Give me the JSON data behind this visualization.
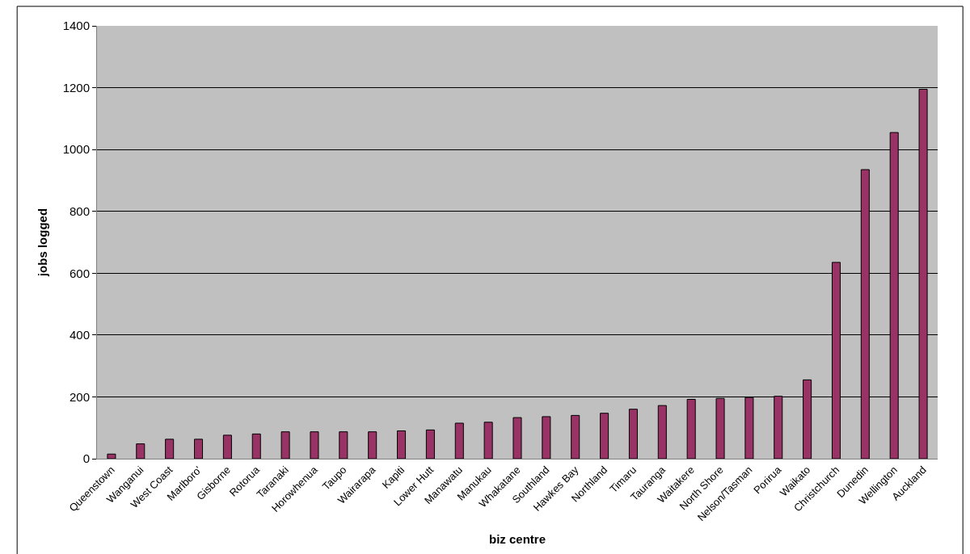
{
  "chart_data": {
    "type": "bar",
    "xlabel": "biz centre",
    "ylabel": "jobs logged",
    "categories": [
      "Queenstown",
      "Wanganui",
      "West Coast",
      "Marlboro'",
      "Gisborne",
      "Rotorua",
      "Taranaki",
      "Horowhenua",
      "Taupo",
      "Wairarapa",
      "Kapiti",
      "Lower Hutt",
      "Manawatu",
      "Manukau",
      "Whakatane",
      "Southland",
      "Hawkes Bay",
      "Northland",
      "Timaru",
      "Tauranga",
      "Waitakere",
      "North Shore",
      "Nelson/Tasman",
      "Porirua",
      "Waikato",
      "Christchurch",
      "Dunedin",
      "Wellington",
      "Auckland"
    ],
    "values": [
      15,
      48,
      63,
      63,
      76,
      80,
      87,
      87,
      87,
      87,
      90,
      93,
      115,
      118,
      133,
      136,
      140,
      147,
      160,
      172,
      192,
      195,
      198,
      202,
      255,
      635,
      935,
      1055,
      1195
    ],
    "color": "#993366",
    "ylim": [
      0,
      1400
    ],
    "yticks": [
      0,
      200,
      400,
      600,
      800,
      1000,
      1200,
      1400
    ],
    "grid": "y",
    "legend": false
  }
}
